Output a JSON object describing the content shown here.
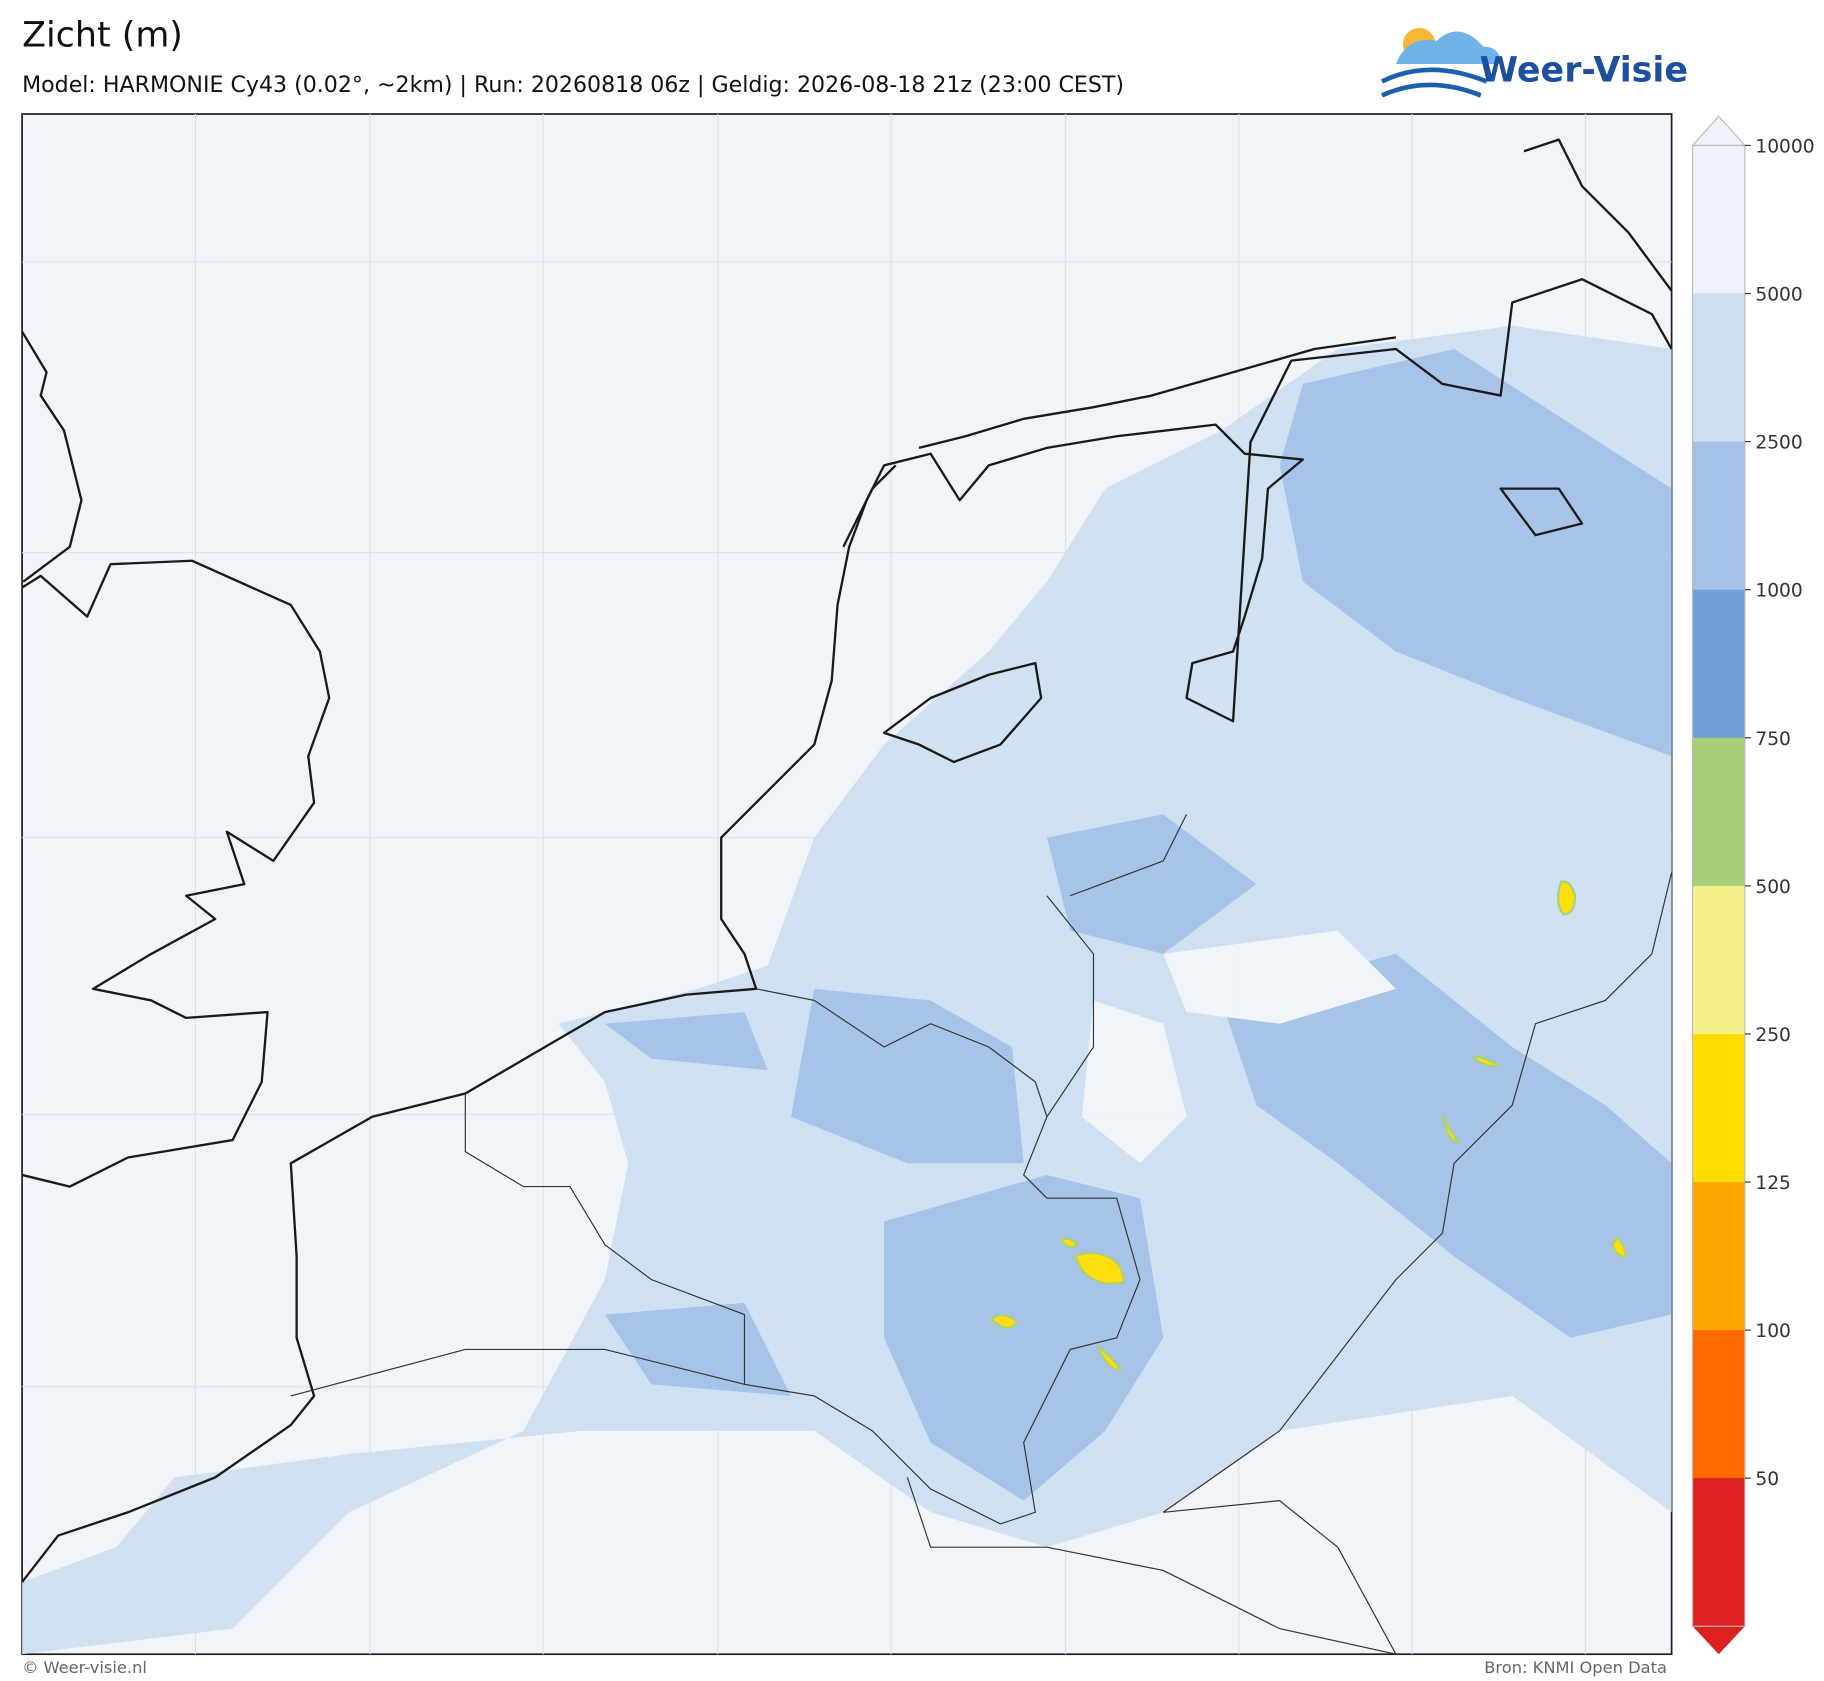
{
  "title": "Zicht (m)",
  "subtitle": "Model: HARMONIE Cy43 (0.02°, ~2km)  |  Run: 20260818 06z  |  Geldig: 2026-08-18 21z (23:00 CEST)",
  "logo": "Weer-Visie",
  "colorbar": {
    "ticks": [
      10000,
      5000,
      2500,
      1000,
      750,
      500,
      250,
      125,
      100,
      50
    ],
    "colors": [
      "#eef3fa",
      "#cddff1",
      "#a4c2e8",
      "#6fa0d8",
      "#a8cf78",
      "#f5f08a",
      "#ffdd00",
      "#ffa500",
      "#ff6a00",
      "#dd2020"
    ]
  },
  "footer": {
    "left": "© Weer-visie.nl",
    "right": "Bron: KNMI Open Data"
  }
}
